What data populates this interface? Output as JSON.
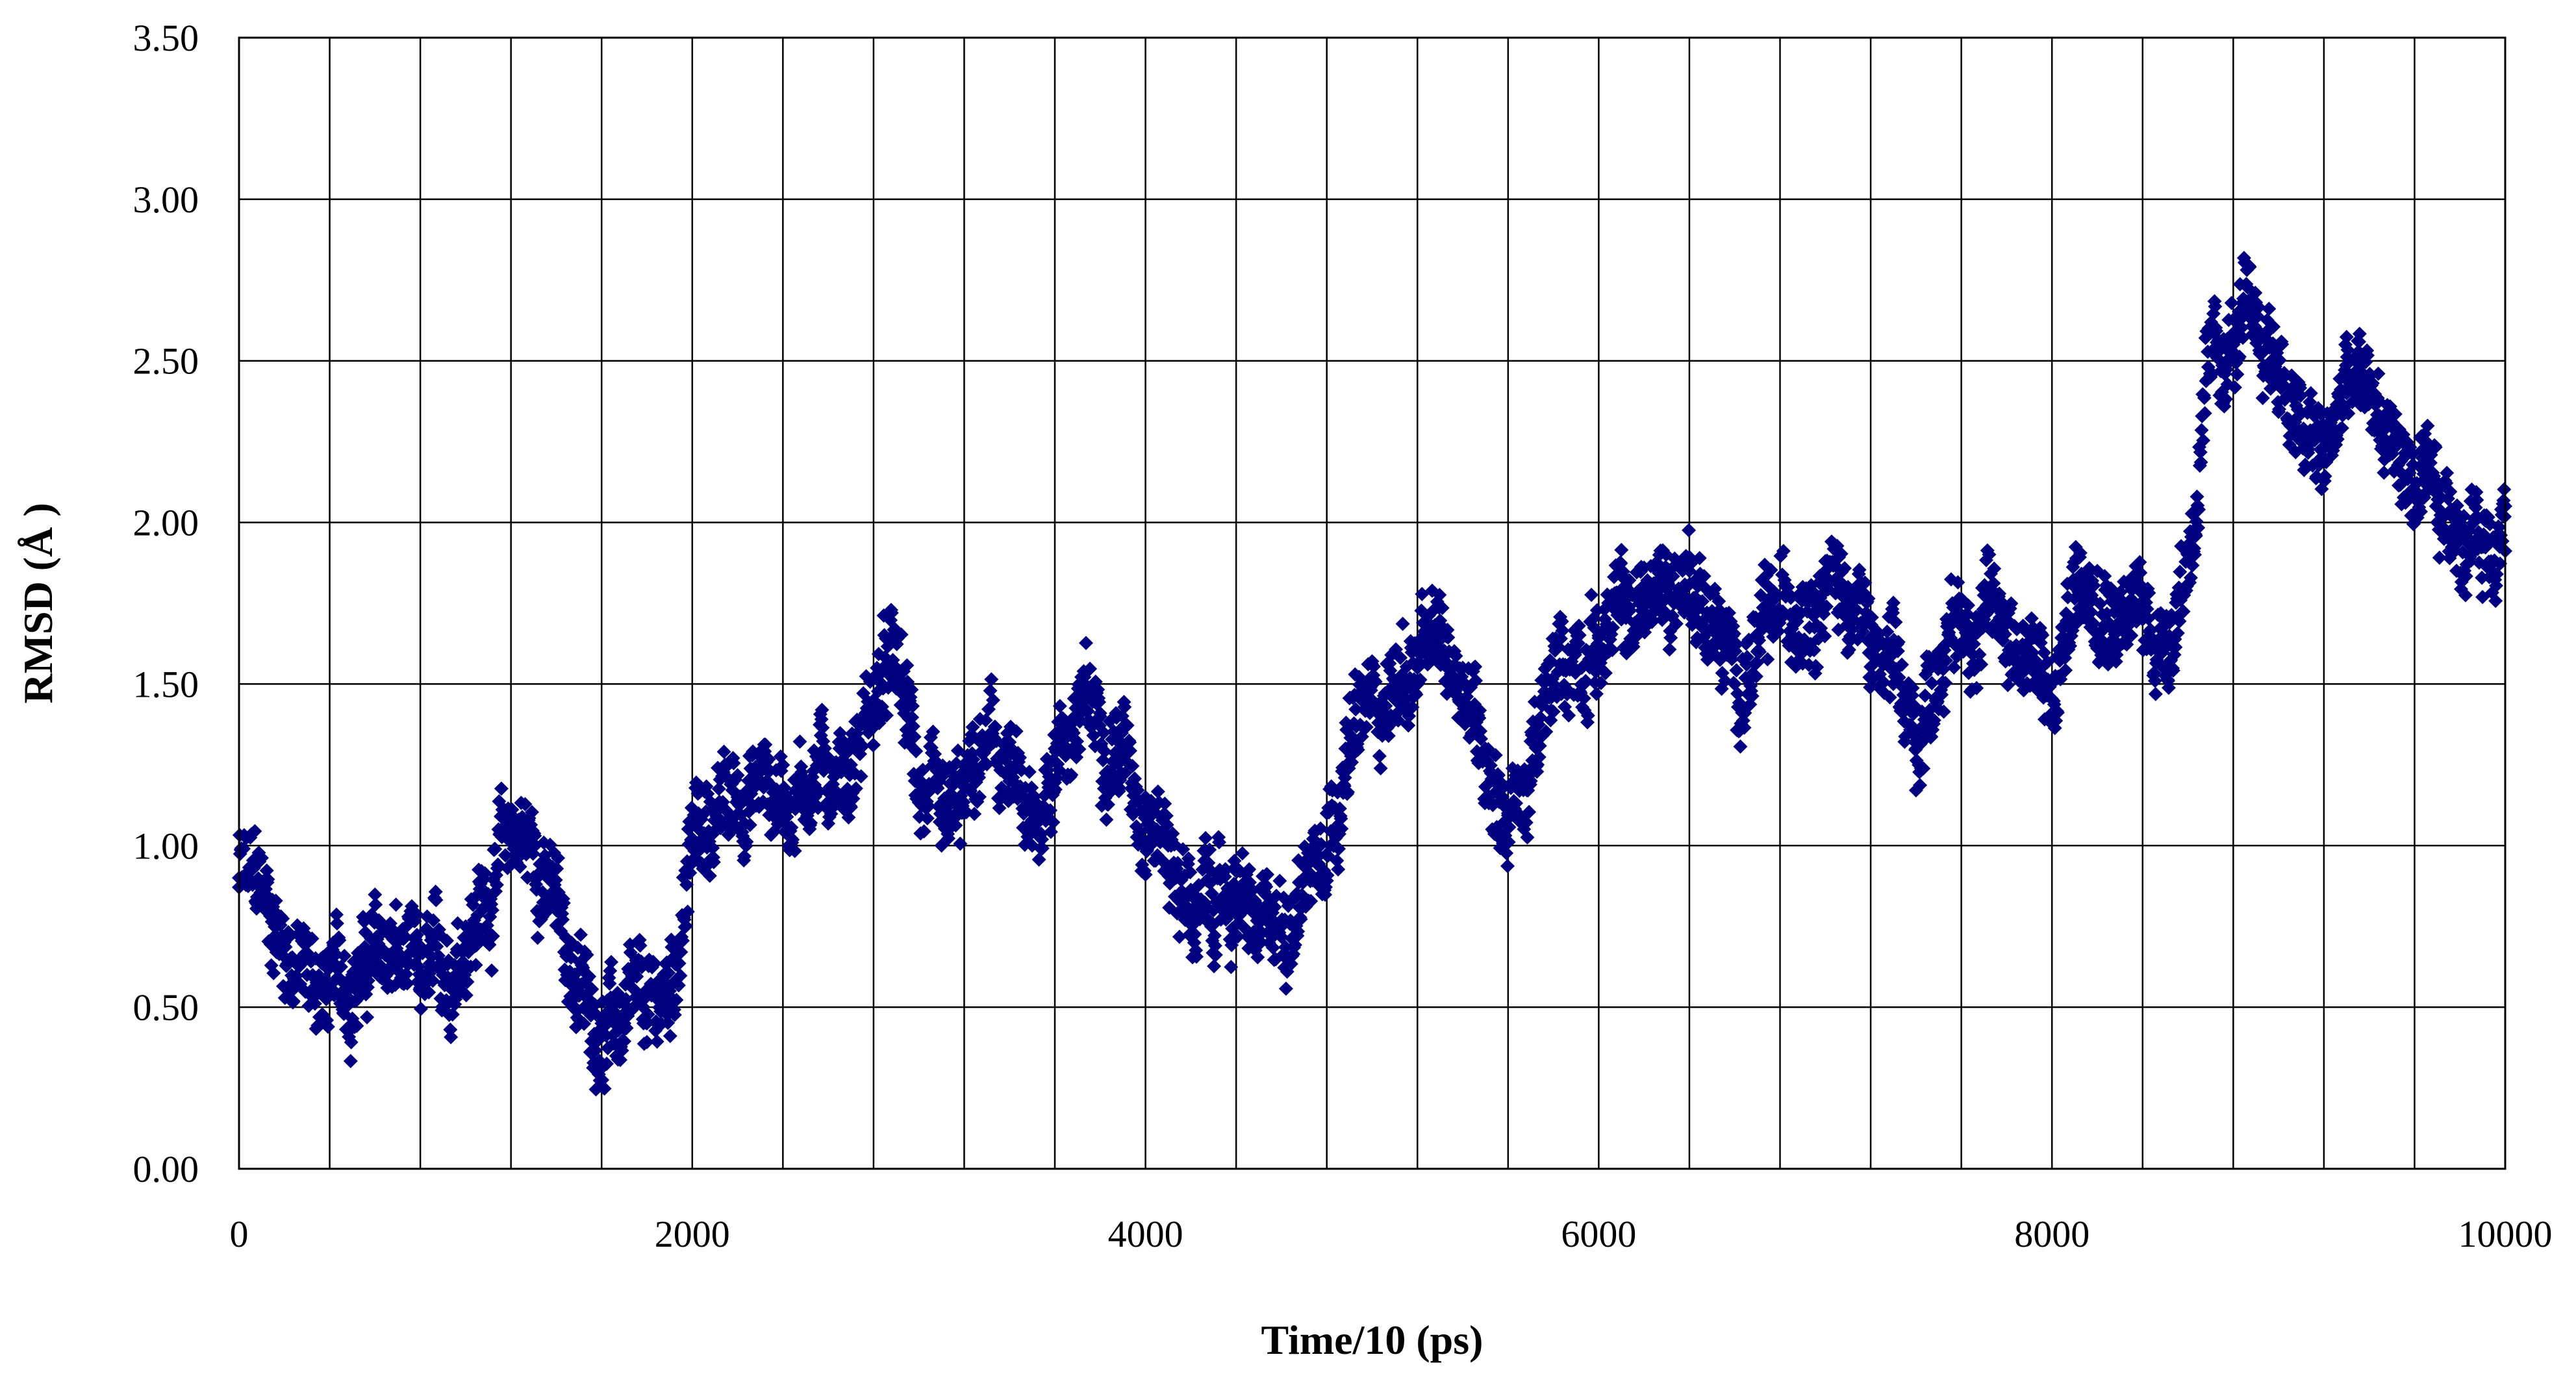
{
  "chart_data": {
    "type": "scatter",
    "xlabel": "Time/10 (ps)",
    "ylabel": "RMSD (Å )",
    "xlim": [
      0,
      10000
    ],
    "ylim": [
      0,
      3.5
    ],
    "x_ticks": [
      "0",
      "2000",
      "4000",
      "6000",
      "8000",
      "10000"
    ],
    "y_ticks": [
      "0.00",
      "0.50",
      "1.00",
      "1.50",
      "2.00",
      "2.50",
      "3.00",
      "3.50"
    ],
    "x_gridline_step": 400,
    "y_gridline_step": 0.5,
    "grid": true,
    "legend": "none",
    "marker": "diamond",
    "series_color": "#000080",
    "series": [
      {
        "x": [
          0,
          100,
          200,
          300,
          400,
          500,
          600,
          700,
          800,
          900,
          1000,
          1100,
          1200,
          1300,
          1400,
          1500,
          1600,
          1700,
          1800,
          1900,
          2000,
          2100,
          2200,
          2300,
          2400,
          2500,
          2600,
          2700,
          2800,
          2900,
          3000,
          3100,
          3200,
          3300,
          3400,
          3500,
          3600,
          3700,
          3800,
          3900,
          4000,
          4100,
          4200,
          4300,
          4400,
          4500,
          4600,
          4700,
          4800,
          4900,
          5000,
          5100,
          5200,
          5300,
          5400,
          5500,
          5600,
          5700,
          5800,
          5900,
          6000,
          6100,
          6200,
          6300,
          6400,
          6500,
          6600,
          6700,
          6800,
          6900,
          7000,
          7100,
          7200,
          7300,
          7400,
          7500,
          7600,
          7700,
          7800,
          7900,
          8000,
          8100,
          8200,
          8300,
          8400,
          8500,
          8600,
          8700,
          8800,
          8900,
          9000,
          9100,
          9200,
          9300,
          9400,
          9500,
          9600,
          9700,
          9800,
          9900,
          10000
        ],
        "y": [
          0.9,
          0.85,
          0.7,
          0.6,
          0.55,
          0.6,
          0.65,
          0.65,
          0.55,
          0.6,
          0.75,
          0.85,
          1.05,
          1.0,
          0.8,
          0.55,
          0.45,
          0.45,
          0.45,
          0.55,
          1.0,
          1.1,
          1.15,
          1.2,
          1.15,
          1.2,
          1.25,
          1.25,
          1.45,
          1.55,
          1.2,
          1.0,
          1.1,
          1.3,
          1.2,
          1.0,
          1.3,
          1.4,
          1.4,
          1.3,
          1.15,
          1.0,
          0.8,
          0.8,
          0.85,
          0.7,
          0.75,
          0.9,
          1.1,
          1.3,
          1.45,
          1.5,
          1.55,
          1.6,
          1.55,
          1.3,
          1.1,
          1.2,
          1.5,
          1.6,
          1.65,
          1.7,
          1.75,
          1.8,
          1.85,
          1.7,
          1.5,
          1.6,
          1.7,
          1.8,
          1.85,
          1.8,
          1.6,
          1.5,
          1.3,
          1.6,
          1.7,
          1.7,
          1.7,
          1.6,
          1.4,
          1.8,
          1.85,
          1.75,
          1.7,
          1.65,
          1.9,
          2.45,
          2.55,
          2.6,
          2.5,
          2.25,
          2.2,
          2.4,
          2.4,
          2.25,
          2.1,
          2.0,
          2.0,
          1.95,
          2.05
        ]
      }
    ]
  }
}
